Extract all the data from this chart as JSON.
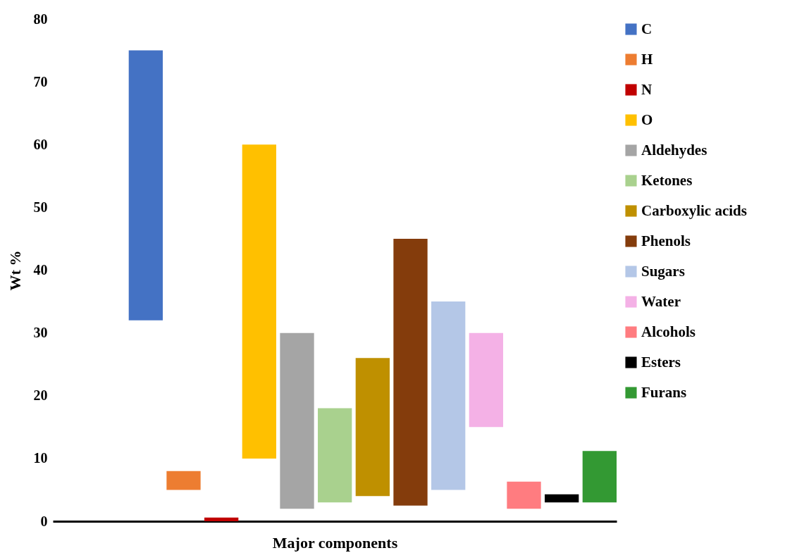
{
  "chart_data": {
    "type": "bar",
    "xlabel": "Major components",
    "ylabel": "Wt %",
    "categories": [
      null
    ],
    "series": [
      {
        "name": "C",
        "color": "#4472c4",
        "base": [
          32
        ],
        "values": [
          43
        ]
      },
      {
        "name": "H",
        "color": "#ed7d31",
        "base": [
          5
        ],
        "values": [
          3
        ]
      },
      {
        "name": "N",
        "color": "#c00000",
        "base": [
          0
        ],
        "values": [
          0.6
        ]
      },
      {
        "name": "O",
        "color": "#ffc000",
        "base": [
          10
        ],
        "values": [
          50
        ]
      },
      {
        "name": "Aldehydes",
        "color": "#a5a5a5",
        "base": [
          2
        ],
        "values": [
          28
        ]
      },
      {
        "name": "Ketones",
        "color": "#a9d18e",
        "base": [
          3
        ],
        "values": [
          15
        ]
      },
      {
        "name": "Carboxylic acids",
        "color": "#bf9000",
        "base": [
          4
        ],
        "values": [
          22
        ]
      },
      {
        "name": "Phenols",
        "color": "#843c0c",
        "base": [
          2.5
        ],
        "values": [
          42.5
        ]
      },
      {
        "name": "Sugars",
        "color": "#b4c7e7",
        "base": [
          5
        ],
        "values": [
          30
        ]
      },
      {
        "name": "Water",
        "color": "#f4b1e6",
        "base": [
          15
        ],
        "values": [
          15
        ]
      },
      {
        "name": "Alcohols",
        "color": "#ff7c80",
        "base": [
          2
        ],
        "values": [
          4.3
        ]
      },
      {
        "name": "Esters",
        "color": "#000000",
        "base": [
          3
        ],
        "values": [
          1.3
        ]
      },
      {
        "name": "Furans",
        "color": "#339933",
        "base": [
          3
        ],
        "values": [
          8.2
        ]
      }
    ],
    "ylim": [
      0,
      80
    ],
    "yticks": [
      0,
      10,
      20,
      30,
      40,
      50,
      60,
      70,
      80
    ],
    "grid": false,
    "legend": "top right",
    "tick_labels": "y"
  }
}
